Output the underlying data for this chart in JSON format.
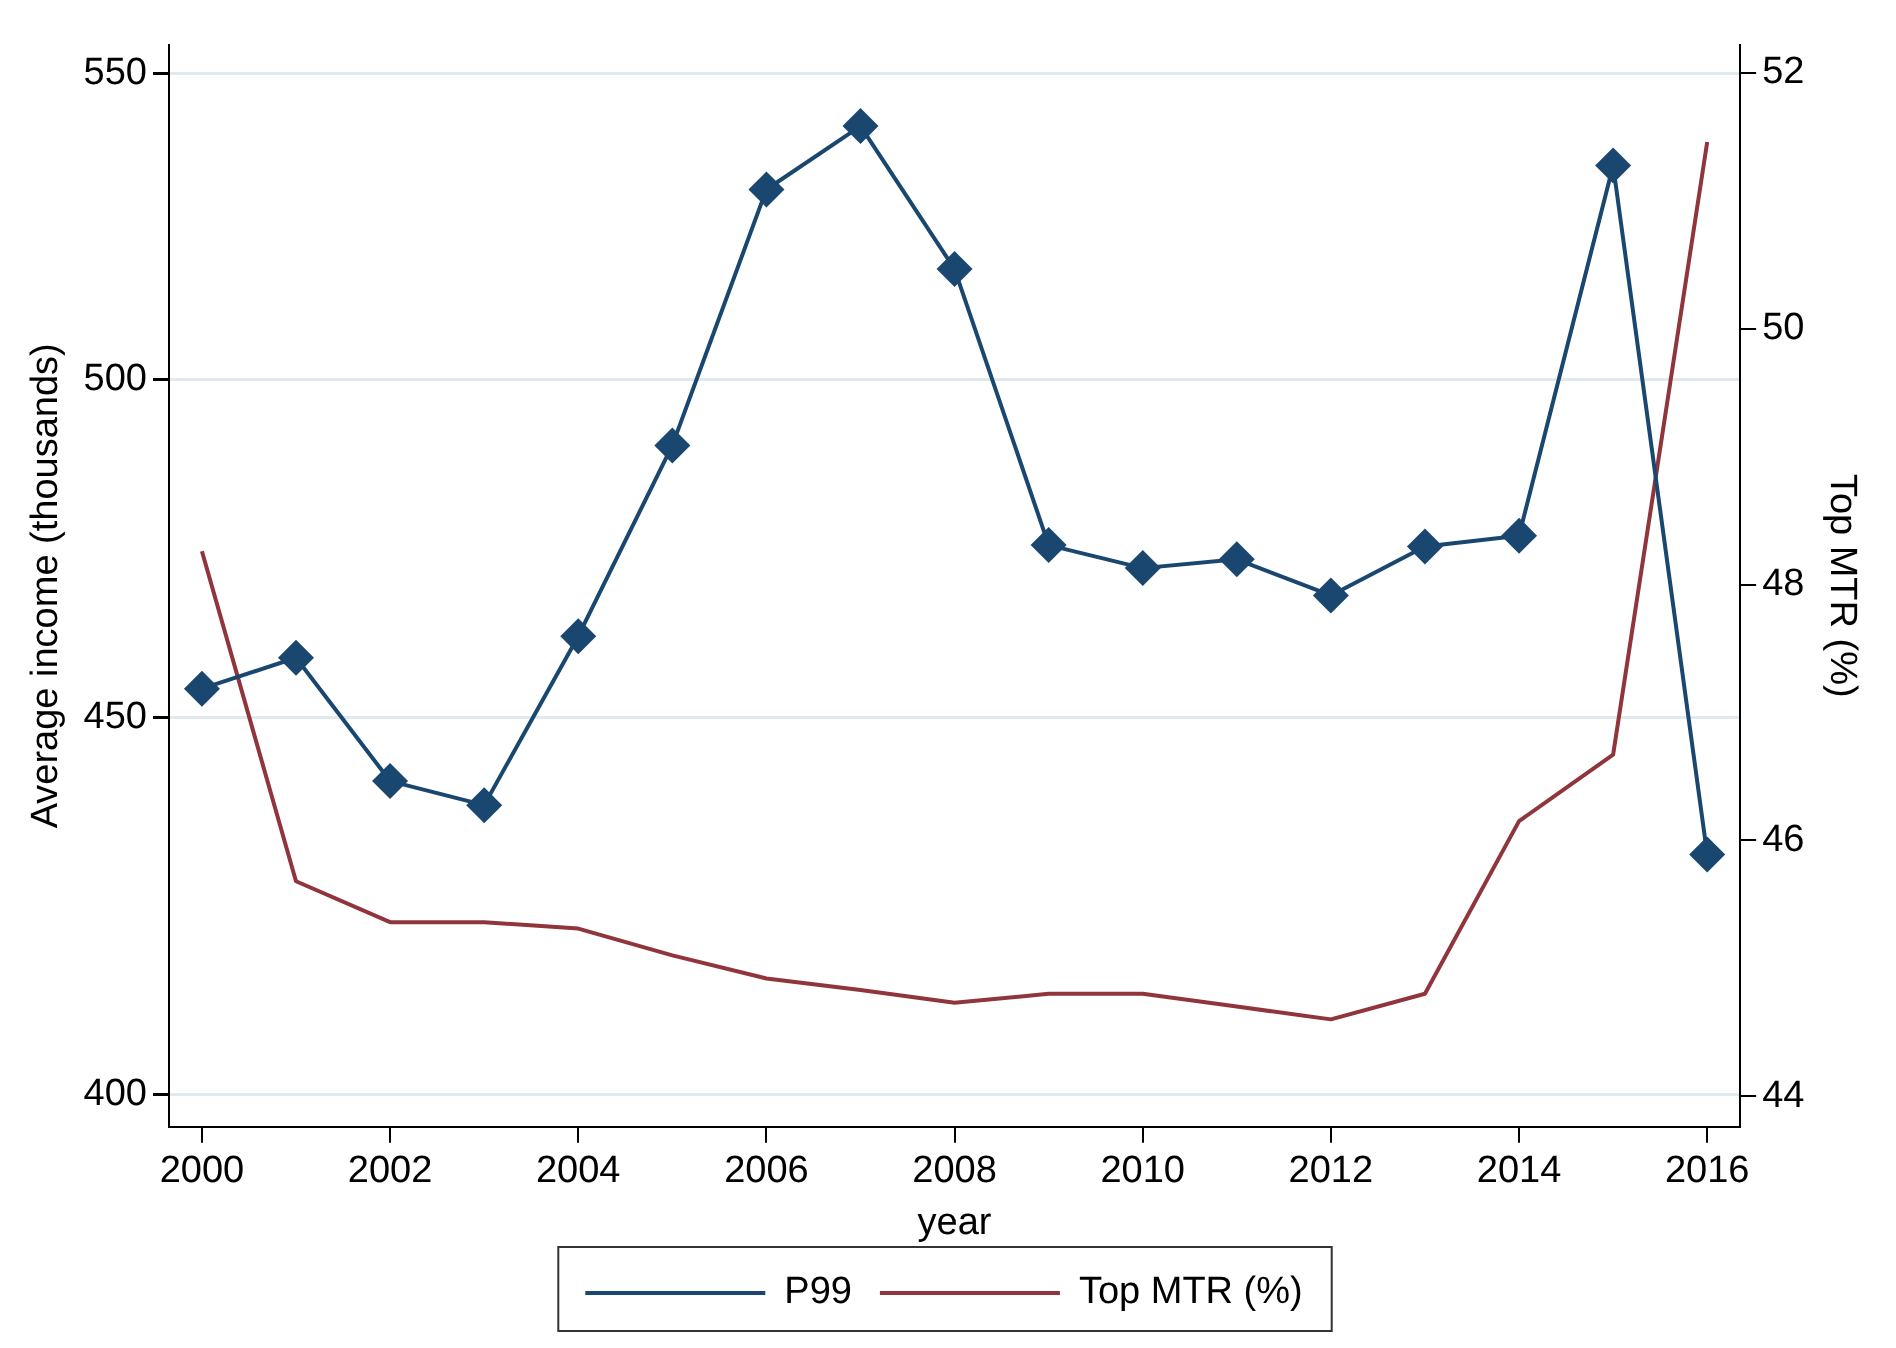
{
  "chart_data": {
    "type": "line",
    "xlabel": "year",
    "ylabel": "Average income (thousands)",
    "y2label": "Top MTR (%)",
    "x": [
      2000,
      2001,
      2002,
      2003,
      2004,
      2005,
      2006,
      2007,
      2008,
      2009,
      2010,
      2011,
      2012,
      2013,
      2014,
      2015,
      2016
    ],
    "series": [
      {
        "name": "P99",
        "color": "#1a476f",
        "marker": "diamond",
        "axis": "y",
        "values": [
          454.0,
          458.4,
          441.1,
          437.8,
          461.5,
          489.8,
          530.5,
          541.1,
          517.5,
          474.8,
          471.4,
          472.7,
          467.4,
          474.6,
          476.2,
          534.5,
          431.1
        ]
      },
      {
        "name": "Top MTR (%)",
        "color": "#90353b",
        "marker": "none",
        "axis": "y2",
        "values": [
          48.26,
          45.68,
          45.36,
          45.36,
          45.31,
          45.1,
          44.92,
          44.83,
          44.73,
          44.8,
          44.8,
          44.7,
          44.6,
          44.8,
          46.15,
          46.67,
          51.46
        ]
      }
    ],
    "xlim": [
      1999.65,
      2016.35
    ],
    "xticks": [
      2000,
      2002,
      2004,
      2006,
      2008,
      2010,
      2012,
      2014,
      2016
    ],
    "ylim": [
      396,
      555
    ],
    "yticks": [
      400,
      450,
      500,
      550
    ],
    "y2lim": [
      43.76,
      52.22
    ],
    "y2ticks": [
      44,
      46,
      48,
      50,
      52
    ],
    "log": "y",
    "grid": "y",
    "legend": "bottom",
    "line_style": "solid"
  }
}
